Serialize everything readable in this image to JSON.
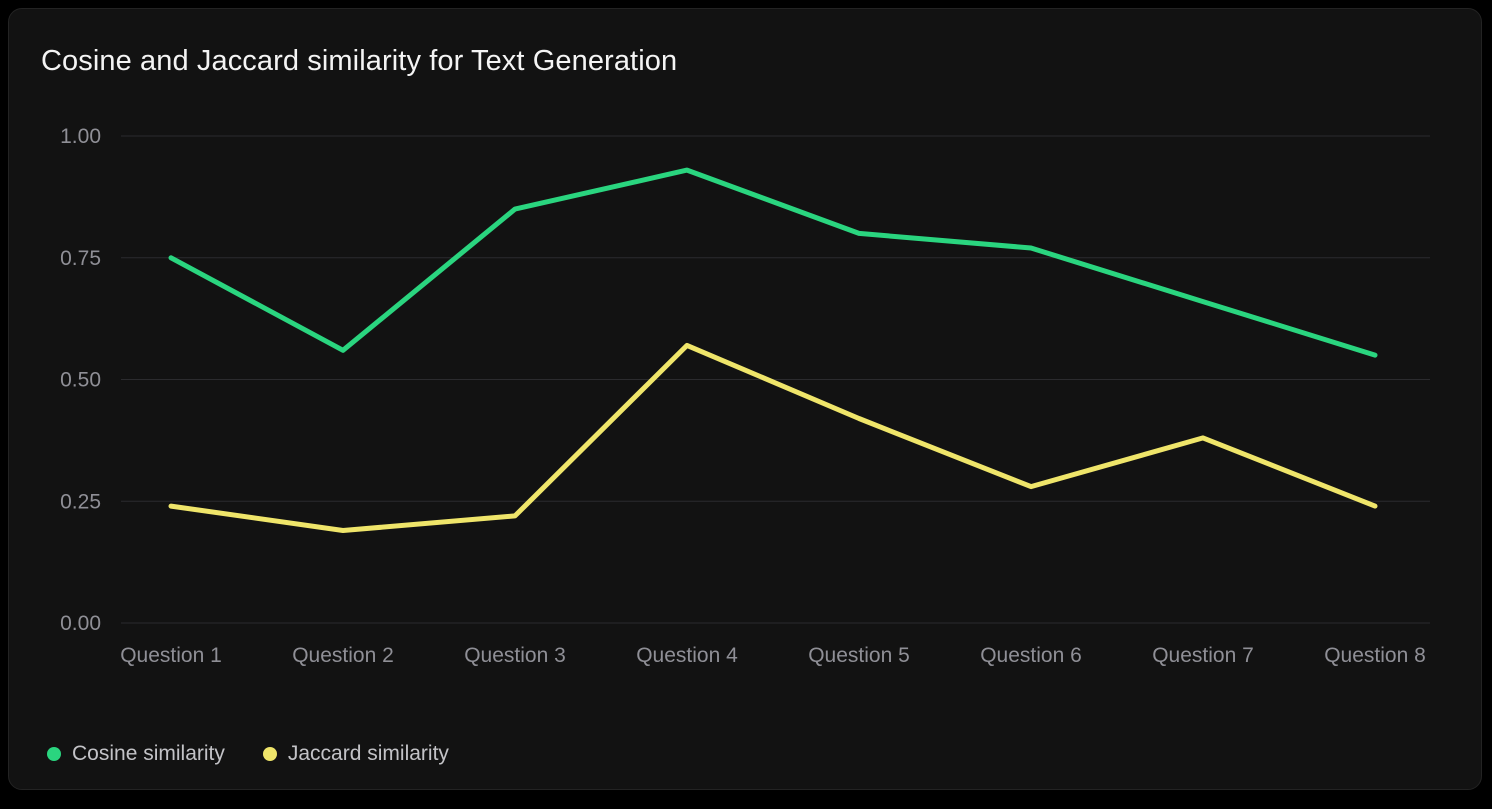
{
  "page": {
    "background": "#000000",
    "card_background": "#121212"
  },
  "chart_data": {
    "type": "line",
    "title": "Cosine and Jaccard similarity for Text Generation",
    "categories": [
      "Question 1",
      "Question 2",
      "Question 3",
      "Question 4",
      "Question 5",
      "Question 6",
      "Question 7",
      "Question 8"
    ],
    "series": [
      {
        "name": "Cosine similarity",
        "color": "#2ad57f",
        "values": [
          0.75,
          0.56,
          0.85,
          0.93,
          0.8,
          0.77,
          0.66,
          0.55
        ]
      },
      {
        "name": "Jaccard similarity",
        "color": "#efe56a",
        "values": [
          0.24,
          0.19,
          0.22,
          0.57,
          0.42,
          0.28,
          0.38,
          0.24
        ]
      }
    ],
    "xlabel": "",
    "ylabel": "",
    "ylim": [
      0,
      1
    ],
    "y_ticks": [
      "0.00",
      "0.25",
      "0.50",
      "0.75",
      "1.00"
    ],
    "grid": "horizontal",
    "gridline_color": "#2b2b2e",
    "tick_label_color": "#8f8f96",
    "legend_position": "bottom-left"
  }
}
